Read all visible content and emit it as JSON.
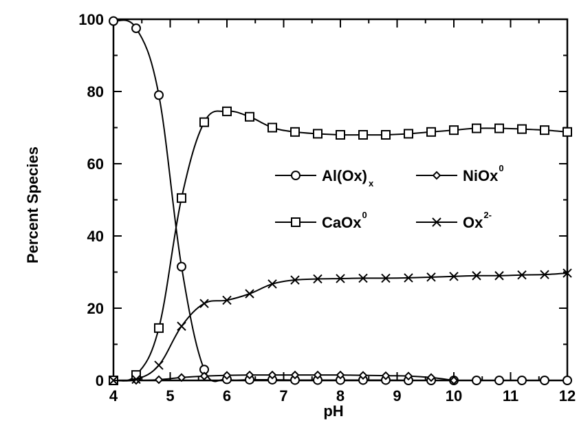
{
  "chart_data": {
    "type": "line",
    "xlabel": "pH",
    "ylabel": "Percent Species",
    "xlim": [
      4,
      12
    ],
    "ylim": [
      0,
      100
    ],
    "x_ticks": [
      "4",
      "5",
      "6",
      "7",
      "8",
      "9",
      "10",
      "11",
      "12"
    ],
    "y_ticks": [
      "0",
      "20",
      "40",
      "60",
      "80",
      "100"
    ],
    "grid": false,
    "legend_position": "center-right",
    "series": [
      {
        "name": "Al(Ox)",
        "name_sub": "x",
        "name_sup": "",
        "marker": "circle",
        "x": [
          4.0,
          4.4,
          4.8,
          5.2,
          5.6,
          6.0,
          6.4,
          6.8,
          7.2,
          7.6,
          8.0,
          8.4,
          8.8,
          9.2,
          9.6,
          10.0,
          10.4,
          10.8,
          11.2,
          11.6,
          12.0
        ],
        "y": [
          99.5,
          97.5,
          79,
          31.5,
          3,
          0.3,
          0.2,
          0.2,
          0.1,
          0.1,
          0.1,
          0.1,
          0.1,
          0,
          0,
          0,
          0,
          0,
          0,
          0,
          0
        ]
      },
      {
        "name": "NiOx",
        "name_sub": "",
        "name_sup": "0",
        "marker": "diamond",
        "x": [
          4.0,
          4.4,
          4.8,
          5.2,
          5.6,
          6.0,
          6.4,
          6.8,
          7.2,
          7.6,
          8.0,
          8.4,
          8.8,
          9.2,
          9.6,
          10.0
        ],
        "y": [
          0,
          0,
          0.2,
          0.8,
          1.2,
          1.4,
          1.5,
          1.5,
          1.5,
          1.5,
          1.5,
          1.4,
          1.3,
          1.2,
          0.8,
          0
        ]
      },
      {
        "name": "CaOx",
        "name_sub": "",
        "name_sup": "0",
        "marker": "square",
        "x": [
          4.0,
          4.4,
          4.8,
          5.2,
          5.6,
          6.0,
          6.4,
          6.8,
          7.2,
          7.6,
          8.0,
          8.4,
          8.8,
          9.2,
          9.6,
          10.0,
          10.4,
          10.8,
          11.2,
          11.6,
          12.0
        ],
        "y": [
          0,
          1.5,
          14.5,
          50.5,
          71.5,
          74.5,
          73,
          70,
          68.8,
          68.3,
          68,
          68,
          68,
          68.3,
          68.8,
          69.3,
          69.8,
          69.8,
          69.6,
          69.3,
          68.8
        ]
      },
      {
        "name": "Ox",
        "name_sub": "",
        "name_sup": "2-",
        "marker": "x",
        "x": [
          4.0,
          4.4,
          4.8,
          5.2,
          5.6,
          6.0,
          6.4,
          6.8,
          7.2,
          7.6,
          8.0,
          8.4,
          8.8,
          9.2,
          9.6,
          10.0,
          10.4,
          10.8,
          11.2,
          11.6,
          12.0
        ],
        "y": [
          0,
          0.3,
          4.2,
          15,
          21.3,
          22.2,
          24,
          26.7,
          27.8,
          28.1,
          28.2,
          28.3,
          28.3,
          28.4,
          28.6,
          28.8,
          29,
          29,
          29.2,
          29.3,
          29.7
        ]
      }
    ]
  },
  "colors": {
    "ink": "#000000",
    "background": "#ffffff"
  }
}
